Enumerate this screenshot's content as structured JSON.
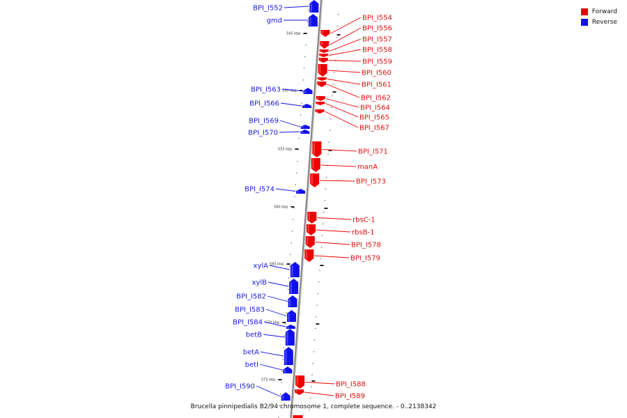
{
  "caption": "Brucella pinnipedialis B2/94 chromosome 1, complete sequence. - 0..2138342",
  "colors": {
    "forward": "#ee0000",
    "reverse": "#1010ee",
    "axis": "#888888"
  },
  "legend": [
    {
      "label": "Forward",
      "color": "#ee0000"
    },
    {
      "label": "Reverse",
      "color": "#1010ee"
    }
  ],
  "ticks": [
    "545 kbp",
    "550 kbp",
    "555 kbp",
    "560 kbp",
    "565 kbp",
    "570 kbp",
    "575 kbp"
  ],
  "genes": [
    {
      "name": "BPI_I552",
      "strand": "reverse"
    },
    {
      "name": "gmd",
      "strand": "reverse"
    },
    {
      "name": "BPI_I554",
      "strand": "forward"
    },
    {
      "name": "BPI_I556",
      "strand": "forward"
    },
    {
      "name": "BPI_I557",
      "strand": "forward"
    },
    {
      "name": "BPI_I558",
      "strand": "forward"
    },
    {
      "name": "BPI_I559",
      "strand": "forward"
    },
    {
      "name": "BPI_I560",
      "strand": "forward"
    },
    {
      "name": "BPI_I561",
      "strand": "forward"
    },
    {
      "name": "BPI_I562",
      "strand": "forward"
    },
    {
      "name": "BPI_I563",
      "strand": "reverse"
    },
    {
      "name": "BPI_I564",
      "strand": "forward"
    },
    {
      "name": "BPI_I565",
      "strand": "forward"
    },
    {
      "name": "BPI_I566",
      "strand": "reverse"
    },
    {
      "name": "BPI_I567",
      "strand": "forward"
    },
    {
      "name": "BPI_I569",
      "strand": "reverse"
    },
    {
      "name": "BPI_I570",
      "strand": "reverse"
    },
    {
      "name": "BPI_I571",
      "strand": "forward"
    },
    {
      "name": "manA",
      "strand": "forward"
    },
    {
      "name": "BPI_I573",
      "strand": "forward"
    },
    {
      "name": "BPI_I574",
      "strand": "reverse"
    },
    {
      "name": "rbsC-1",
      "strand": "forward"
    },
    {
      "name": "rbsB-1",
      "strand": "forward"
    },
    {
      "name": "BPI_I578",
      "strand": "forward"
    },
    {
      "name": "BPI_I579",
      "strand": "forward"
    },
    {
      "name": "xylA",
      "strand": "reverse"
    },
    {
      "name": "xylB",
      "strand": "reverse"
    },
    {
      "name": "BPI_I582",
      "strand": "reverse"
    },
    {
      "name": "BPI_I583",
      "strand": "reverse"
    },
    {
      "name": "BPI_I584",
      "strand": "reverse"
    },
    {
      "name": "betB",
      "strand": "reverse"
    },
    {
      "name": "betA",
      "strand": "reverse"
    },
    {
      "name": "betI",
      "strand": "reverse"
    },
    {
      "name": "BPI_I588",
      "strand": "forward"
    },
    {
      "name": "BPI_I589",
      "strand": "forward"
    },
    {
      "name": "BPI_I590",
      "strand": "reverse"
    }
  ]
}
